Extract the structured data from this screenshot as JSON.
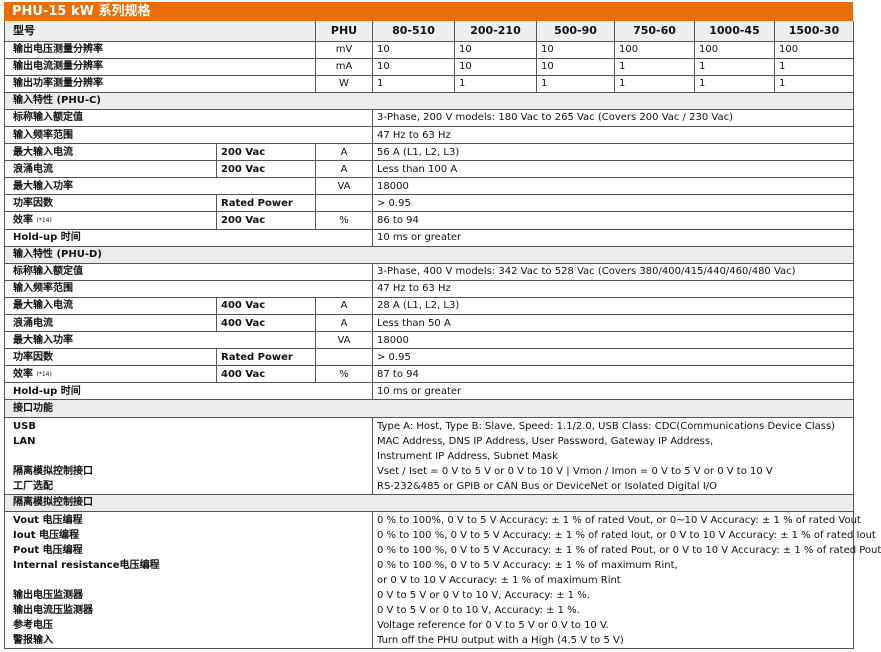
{
  "title": "PHU-15 kW 系列规格",
  "colors": {
    "title_bg": "#ea6d07",
    "section_bg": "#ececec"
  },
  "header": {
    "label": "型号",
    "unit": "PHU",
    "models": [
      "80-510",
      "200-210",
      "500-90",
      "750-60",
      "1000-45",
      "1500-30"
    ]
  },
  "rows": [
    {
      "type": "res",
      "label": "输出电压测量分辨率",
      "unit": "mV",
      "values": [
        "10",
        "10",
        "10",
        "100",
        "100",
        "100"
      ]
    },
    {
      "type": "res",
      "label": "输出电流测量分辨率",
      "unit": "mA",
      "values": [
        "10",
        "10",
        "10",
        "1",
        "1",
        "1"
      ]
    },
    {
      "type": "res",
      "label": "输出功率测量分辨率",
      "unit": "W",
      "values": [
        "1",
        "1",
        "1",
        "1",
        "1",
        "1"
      ]
    },
    {
      "type": "sec",
      "label": "输入特性 (PHU-C)"
    },
    {
      "type": "span",
      "label": "标称输入额定值",
      "value": "3-Phase, 200 V models: 180 Vac to 265 Vac (Covers 200 Vac / 230 Vac)"
    },
    {
      "type": "span",
      "label": "输入频率范围",
      "value": "47 Hz to 63 Hz"
    },
    {
      "type": "full",
      "label": "最大输入电流",
      "sub": "200 Vac",
      "unit": "A",
      "value": "56 A (L1, L2, L3)"
    },
    {
      "type": "full",
      "label": "浪涌电流",
      "sub": "200 Vac",
      "unit": "A",
      "value": "Less than 100 A"
    },
    {
      "type": "unit",
      "label": "最大输入功率",
      "unit": "VA",
      "value": "18000"
    },
    {
      "type": "full",
      "label": "功率因数",
      "sub": "Rated Power",
      "unit": "",
      "value": "> 0.95"
    },
    {
      "type": "full",
      "label": "效率",
      "note": "(*14)",
      "sub": "200 Vac",
      "unit": "%",
      "value": "86 to 94"
    },
    {
      "type": "span",
      "label": "Hold-up 时间",
      "value": "10 ms or greater"
    },
    {
      "type": "sec",
      "label": "输入特性 (PHU-D)"
    },
    {
      "type": "span",
      "label": "标称输入额定值",
      "value": "3-Phase, 400 V models: 342 Vac to 528 Vac (Covers 380/400/415/440/460/480 Vac)"
    },
    {
      "type": "span",
      "label": "输入频率范围",
      "value": "47 Hz to 63 Hz"
    },
    {
      "type": "full",
      "label": "最大输入电流",
      "sub": "400 Vac",
      "unit": "A",
      "value": "28 A (L1, L2, L3)"
    },
    {
      "type": "full",
      "label": "浪涌电流",
      "sub": "400 Vac",
      "unit": "A",
      "value": "Less than 50 A"
    },
    {
      "type": "unit",
      "label": "最大输入功率",
      "unit": "VA",
      "value": "18000"
    },
    {
      "type": "full",
      "label": "功率因数",
      "sub": "Rated Power",
      "unit": "",
      "value": "> 0.95"
    },
    {
      "type": "full",
      "label": "效率",
      "note": "(*14)",
      "sub": "400 Vac",
      "unit": "%",
      "value": "87 to 94"
    },
    {
      "type": "span",
      "label": "Hold-up 时间",
      "value": "10 ms or greater"
    },
    {
      "type": "sec",
      "label": "接口功能"
    },
    {
      "type": "block",
      "labels": [
        "USB",
        "LAN",
        "",
        "隔离模拟控制接口",
        "工厂选配"
      ],
      "values": [
        "Type A: Host, Type B: Slave, Speed: 1.1/2.0, USB Class: CDC(Communications Device Class)",
        "MAC Address, DNS IP Address, User Password, Gateway IP Address,",
        "Instrument IP Address, Subnet Mask",
        "Vset / Iset = 0 V to 5 V or 0 V to 10 V | Vmon / Imon = 0 V to 5 V or 0 V to 10 V",
        "RS-232&485 or GPIB or CAN Bus or DeviceNet or Isolated Digital I/O"
      ]
    },
    {
      "type": "sec",
      "label": "隔离模拟控制接口"
    },
    {
      "type": "block",
      "labels": [
        "Vout 电压编程",
        "Iout 电压编程",
        "Pout 电压编程",
        "Internal resistance电压编程",
        "",
        "输出电压监测器",
        "输出电流压监测器",
        "参考电压",
        "警报输入"
      ],
      "values": [
        "0 % to 100%, 0 V to 5 V Accuracy: ± 1 % of rated Vout, or 0~10 V Accuracy: ± 1 % of rated Vout",
        "0 % to 100 %, 0 V to 5 V Accuracy: ± 1 % of rated Iout, or 0 V to 10 V Accuracy: ± 1 % of rated Iout",
        "0 % to 100 %, 0 V to 5 V Accuracy: ± 1 % of rated Pout, or 0 V to 10 V Accuracy: ± 1 % of rated Pout",
        "0 % to 100 %, 0 V to 5 V Accuracy: ± 1 % of maximum Rint,",
        "or 0 V to 10 V Accuracy: ± 1 % of maximum Rint",
        "0 V to 5 V or 0 V to 10 V, Accuracy: ± 1 %.",
        "0 V to 5 V or 0 to 10 V, Accuracy: ± 1 %.",
        "Voltage reference for 0 V to 5 V or 0 V to 10 V.",
        "Turn off the PHU output with a High (4.5 V to 5 V)"
      ]
    }
  ]
}
